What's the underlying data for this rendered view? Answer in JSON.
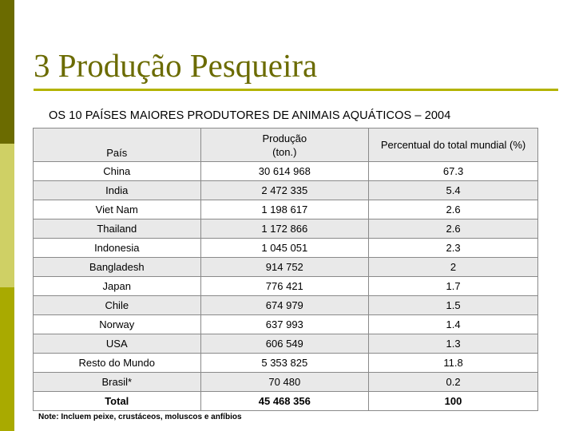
{
  "slide": {
    "title": "3 Produção Pesqueira",
    "subtitle": "OS 10 PAÍSES MAIORES PRODUTORES DE ANIMAIS AQUÁTICOS – 2004",
    "note": "Note: Incluem peixe, crustáceos, moluscos e anfíbios"
  },
  "table": {
    "headers": {
      "country": "País",
      "production": "Produção (ton.)",
      "percent": "Percentual do total mundial (%)"
    },
    "rows": [
      {
        "country": "China",
        "production": "30 614 968",
        "percent": "67.3"
      },
      {
        "country": "India",
        "production": "2 472 335",
        "percent": "5.4"
      },
      {
        "country": "Viet Nam",
        "production": "1 198 617",
        "percent": "2.6"
      },
      {
        "country": "Thailand",
        "production": "1 172 866",
        "percent": "2.6"
      },
      {
        "country": "Indonesia",
        "production": "1 045 051",
        "percent": "2.3"
      },
      {
        "country": "Bangladesh",
        "production": "914 752",
        "percent": "2"
      },
      {
        "country": "Japan",
        "production": "776 421",
        "percent": "1.7"
      },
      {
        "country": "Chile",
        "production": "674 979",
        "percent": "1.5"
      },
      {
        "country": "Norway",
        "production": "637 993",
        "percent": "1.4"
      },
      {
        "country": "USA",
        "production": "606 549",
        "percent": "1.3"
      },
      {
        "country": "Resto do Mundo",
        "production": "5 353 825",
        "percent": "11.8"
      },
      {
        "country": "Brasil*",
        "production": "70 480",
        "percent": "0.2"
      },
      {
        "country": "Total",
        "production": "45 468 356",
        "percent": "100"
      }
    ]
  },
  "colors": {
    "accent_dark": "#6b6b00",
    "accent_light": "#cfd065",
    "accent_mid": "#a9aa00",
    "row_shade": "#e9e9e9"
  }
}
